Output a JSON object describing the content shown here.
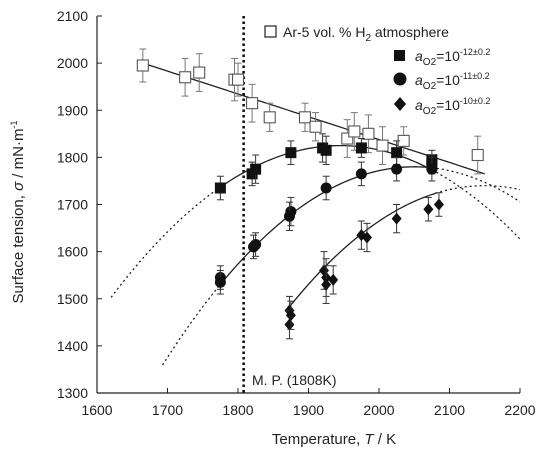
{
  "chart_data": {
    "type": "scatter",
    "xlabel_text": "Temperature, ",
    "xlabel_var": "T",
    "xlabel_unit": " / K",
    "ylabel_text": "Surface tension, ",
    "ylabel_var": "σ",
    "ylabel_unit": " / mN·m",
    "ylabel_unit_exp": "-1",
    "xlim": [
      1600,
      2200
    ],
    "ylim": [
      1300,
      2100
    ],
    "x_ticks": [
      1600,
      1700,
      1800,
      1900,
      2000,
      2100,
      2200
    ],
    "y_ticks": [
      1300,
      1400,
      1500,
      1600,
      1700,
      1800,
      1900,
      2000,
      2100
    ],
    "grid": false,
    "legend_position": "top-right",
    "annotation": {
      "label": "M. P. (1808K)",
      "x": 1808
    },
    "series": [
      {
        "name": "Ar-5 vol. % H2 atmosphere",
        "legend_main": "Ar-5 vol. % H",
        "legend_sub": "2",
        "legend_tail": " atmosphere",
        "marker": "open-square",
        "points": [
          {
            "x": 1665,
            "y": 1995,
            "err": 35
          },
          {
            "x": 1725,
            "y": 1970,
            "err": 40
          },
          {
            "x": 1745,
            "y": 1980,
            "err": 40
          },
          {
            "x": 1795,
            "y": 1965,
            "err": 45
          },
          {
            "x": 1800,
            "y": 1965,
            "err": 35
          },
          {
            "x": 1820,
            "y": 1915,
            "err": 40
          },
          {
            "x": 1845,
            "y": 1885,
            "err": 30
          },
          {
            "x": 1895,
            "y": 1885,
            "err": 30
          },
          {
            "x": 1910,
            "y": 1865,
            "err": 30
          },
          {
            "x": 1955,
            "y": 1840,
            "err": 40
          },
          {
            "x": 1965,
            "y": 1855,
            "err": 40
          },
          {
            "x": 1985,
            "y": 1850,
            "err": 40
          },
          {
            "x": 2005,
            "y": 1825,
            "err": 40
          },
          {
            "x": 2035,
            "y": 1835,
            "err": 30
          },
          {
            "x": 2140,
            "y": 1805,
            "err": 40
          }
        ],
        "fit": {
          "type": "linear",
          "x": [
            1665,
            2150
          ],
          "y": [
            2000,
            1765
          ]
        }
      },
      {
        "name": "aO2=10^-12±0.2",
        "legend_var": "a",
        "legend_sub": "O2",
        "legend_base": "=10",
        "legend_exp": "-12±0.2",
        "marker": "filled-square",
        "points": [
          {
            "x": 1775,
            "y": 1735,
            "err": 25
          },
          {
            "x": 1820,
            "y": 1765,
            "err": 25
          },
          {
            "x": 1825,
            "y": 1775,
            "err": 30
          },
          {
            "x": 1875,
            "y": 1810,
            "err": 25
          },
          {
            "x": 1920,
            "y": 1820,
            "err": 30
          },
          {
            "x": 1925,
            "y": 1815,
            "err": 30
          },
          {
            "x": 1975,
            "y": 1820,
            "err": 20
          },
          {
            "x": 2025,
            "y": 1810,
            "err": 25
          },
          {
            "x": 2075,
            "y": 1795,
            "err": 20
          },
          {
            "x": 2075,
            "y": 1785,
            "err": 20
          }
        ],
        "fit": {
          "type": "quadratic",
          "vertex_x": 1945,
          "vertex_y": 1825,
          "a": -0.00305,
          "solid": [
            1775,
            2075
          ],
          "dashed": [
            [
              1620,
              1775
            ],
            [
              2075,
              2200
            ]
          ]
        }
      },
      {
        "name": "aO2=10^-11±0.2",
        "legend_var": "a",
        "legend_sub": "O2",
        "legend_base": "=10",
        "legend_exp": "-11±0.2",
        "marker": "filled-circle",
        "points": [
          {
            "x": 1775,
            "y": 1545,
            "err": 25
          },
          {
            "x": 1775,
            "y": 1535,
            "err": 25
          },
          {
            "x": 1825,
            "y": 1615,
            "err": 25
          },
          {
            "x": 1822,
            "y": 1610,
            "err": 25
          },
          {
            "x": 1875,
            "y": 1685,
            "err": 30
          },
          {
            "x": 1873,
            "y": 1675,
            "err": 30
          },
          {
            "x": 1925,
            "y": 1735,
            "err": 25
          },
          {
            "x": 1975,
            "y": 1765,
            "err": 25
          },
          {
            "x": 2025,
            "y": 1775,
            "err": 25
          },
          {
            "x": 2075,
            "y": 1775,
            "err": 25
          }
        ],
        "fit": {
          "type": "quadratic",
          "vertex_x": 2050,
          "vertex_y": 1780,
          "a": -0.0033,
          "solid": [
            1775,
            2075
          ],
          "dashed": [
            [
              1693,
              1775
            ],
            [
              2075,
              2200
            ]
          ]
        }
      },
      {
        "name": "aO2=10^-10±0.2",
        "legend_var": "a",
        "legend_sub": "O2",
        "legend_base": "=10",
        "legend_exp": "-10±0.2",
        "marker": "filled-diamond",
        "points": [
          {
            "x": 1873,
            "y": 1475,
            "err": 30
          },
          {
            "x": 1873,
            "y": 1445,
            "err": 30
          },
          {
            "x": 1875,
            "y": 1465,
            "err": 30
          },
          {
            "x": 1922,
            "y": 1560,
            "err": 40
          },
          {
            "x": 1925,
            "y": 1545,
            "err": 40
          },
          {
            "x": 1925,
            "y": 1530,
            "err": 40
          },
          {
            "x": 1935,
            "y": 1540,
            "err": 30
          },
          {
            "x": 1975,
            "y": 1635,
            "err": 30
          },
          {
            "x": 1983,
            "y": 1630,
            "err": 30
          },
          {
            "x": 2025,
            "y": 1670,
            "err": 30
          },
          {
            "x": 2070,
            "y": 1690,
            "err": 25
          },
          {
            "x": 2085,
            "y": 1700,
            "err": 25
          }
        ],
        "fit": {
          "type": "quadratic",
          "vertex_x": 2150,
          "vertex_y": 1740,
          "a": -0.00335,
          "solid": [
            1875,
            2080
          ],
          "dashed": [
            [
              1869,
              1875
            ],
            [
              2080,
              2200
            ]
          ]
        }
      }
    ]
  }
}
